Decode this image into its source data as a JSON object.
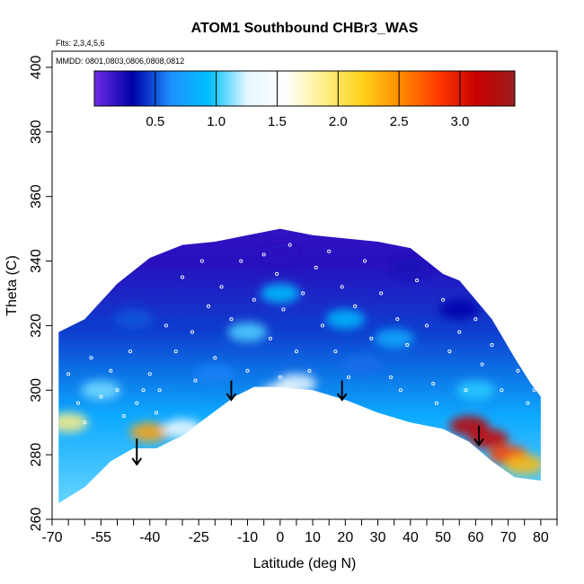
{
  "colors": {
    "scale": [
      "#6f2ce6",
      "#0000a8",
      "#1e90ff",
      "#00c0ff",
      "#e6f6ff",
      "#ffffff",
      "#fff08a",
      "#ffd21a",
      "#ff8c00",
      "#ff3b00",
      "#c80000",
      "#9c1e1e"
    ],
    "arrow": "#000000",
    "sample": "#ffffff"
  },
  "chart_data": {
    "type": "heatmap",
    "title": "ATOM1 Southbound CHBr3_WAS",
    "flights_note": "Flts: 2,3,4,5,6",
    "dates_note": "MMDD: 0801,0803,0806,0808,0812",
    "xlabel": "Latitude (deg N)",
    "ylabel": "Theta (C)",
    "xlim": [
      -70,
      85
    ],
    "ylim": [
      260,
      405
    ],
    "x_ticks": [
      -70,
      -55,
      -40,
      -25,
      -10,
      0,
      10,
      20,
      30,
      40,
      50,
      60,
      70,
      80
    ],
    "x_tick_labels": [
      "-70",
      "-55",
      "-40",
      "-25",
      "-10",
      "0",
      "10",
      "20",
      "30",
      "40",
      "50",
      "60",
      "70",
      "80"
    ],
    "x_minor_ticks": [
      -65,
      -60,
      -50,
      -45,
      -35,
      -30,
      -20,
      -15,
      -5,
      5,
      15,
      25,
      35,
      45,
      55,
      65,
      75,
      85
    ],
    "y_ticks": [
      260,
      280,
      300,
      320,
      340,
      360,
      380,
      400
    ],
    "y_tick_labels": [
      "260",
      "280",
      "300",
      "320",
      "340",
      "360",
      "380",
      "400"
    ],
    "colorbar": {
      "range": [
        0,
        3.45
      ],
      "ticks": [
        0.5,
        1.0,
        1.5,
        2.0,
        2.5,
        3.0
      ],
      "tick_labels": [
        "0.5",
        "1.0",
        "1.5",
        "2.0",
        "2.5",
        "3.0"
      ]
    },
    "upper_boundary": [
      [
        -68,
        318
      ],
      [
        -60,
        322
      ],
      [
        -50,
        333
      ],
      [
        -40,
        341
      ],
      [
        -30,
        345
      ],
      [
        -20,
        346
      ],
      [
        -10,
        348
      ],
      [
        0,
        350
      ],
      [
        10,
        348
      ],
      [
        20,
        347
      ],
      [
        30,
        346
      ],
      [
        40,
        344
      ],
      [
        50,
        336
      ],
      [
        55,
        334
      ],
      [
        60,
        328
      ],
      [
        65,
        322
      ],
      [
        72,
        310
      ],
      [
        77,
        302
      ],
      [
        80,
        298
      ]
    ],
    "lower_boundary": [
      [
        -68,
        265
      ],
      [
        -60,
        270
      ],
      [
        -52,
        278
      ],
      [
        -45,
        282
      ],
      [
        -38,
        282
      ],
      [
        -30,
        286
      ],
      [
        -22,
        292
      ],
      [
        -14,
        298
      ],
      [
        -8,
        301
      ],
      [
        0,
        301
      ],
      [
        10,
        300
      ],
      [
        20,
        297
      ],
      [
        30,
        293
      ],
      [
        40,
        290
      ],
      [
        50,
        288
      ],
      [
        58,
        284
      ],
      [
        65,
        278
      ],
      [
        72,
        273
      ],
      [
        80,
        272
      ]
    ],
    "hotspots": [
      {
        "lat": -40,
        "theta": 287,
        "value": 2.4
      },
      {
        "lat": -65,
        "theta": 290,
        "value": 1.9
      },
      {
        "lat": -30,
        "theta": 288,
        "value": 1.4
      },
      {
        "lat": 0,
        "theta": 299,
        "value": 1.6
      },
      {
        "lat": 5,
        "theta": 302,
        "value": 1.3
      },
      {
        "lat": 58,
        "theta": 289,
        "value": 3.2
      },
      {
        "lat": 64,
        "theta": 285,
        "value": 3.1
      },
      {
        "lat": 70,
        "theta": 280,
        "value": 2.8
      },
      {
        "lat": 75,
        "theta": 277,
        "value": 2.3
      },
      {
        "lat": -55,
        "theta": 300,
        "value": 1.1
      },
      {
        "lat": -10,
        "theta": 318,
        "value": 1.05
      },
      {
        "lat": 0,
        "theta": 330,
        "value": 0.95
      },
      {
        "lat": 20,
        "theta": 322,
        "value": 0.9
      },
      {
        "lat": 35,
        "theta": 316,
        "value": 0.8
      },
      {
        "lat": 60,
        "theta": 300,
        "value": 1.0
      },
      {
        "lat": -45,
        "theta": 322,
        "value": 0.5
      },
      {
        "lat": 0,
        "theta": 342,
        "value": 0.2
      },
      {
        "lat": -55,
        "theta": 335,
        "value": 0.15
      },
      {
        "lat": 40,
        "theta": 338,
        "value": 0.25
      },
      {
        "lat": 55,
        "theta": 325,
        "value": 0.3
      },
      {
        "lat": 25,
        "theta": 308,
        "value": 0.55
      },
      {
        "lat": -20,
        "theta": 305,
        "value": 0.6
      }
    ],
    "arrows": [
      {
        "lat": -44,
        "theta_top": 285,
        "theta_bottom": 277
      },
      {
        "lat": -15,
        "theta_top": 303,
        "theta_bottom": 297
      },
      {
        "lat": 19,
        "theta_top": 303,
        "theta_bottom": 297
      },
      {
        "lat": 61,
        "theta_top": 289,
        "theta_bottom": 283
      }
    ],
    "sample_points": [
      [
        -65,
        305
      ],
      [
        -62,
        296
      ],
      [
        -58,
        310
      ],
      [
        -55,
        298
      ],
      [
        -52,
        306
      ],
      [
        -50,
        300
      ],
      [
        -48,
        292
      ],
      [
        -46,
        312
      ],
      [
        -44,
        296
      ],
      [
        -42,
        300
      ],
      [
        -40,
        305
      ],
      [
        -38,
        293
      ],
      [
        -35,
        320
      ],
      [
        -32,
        312
      ],
      [
        -30,
        335
      ],
      [
        -27,
        318
      ],
      [
        -24,
        340
      ],
      [
        -22,
        326
      ],
      [
        -20,
        310
      ],
      [
        -18,
        332
      ],
      [
        -15,
        322
      ],
      [
        -12,
        340
      ],
      [
        -10,
        306
      ],
      [
        -8,
        328
      ],
      [
        -5,
        342
      ],
      [
        -3,
        316
      ],
      [
        -1,
        336
      ],
      [
        0,
        304
      ],
      [
        1,
        325
      ],
      [
        3,
        345
      ],
      [
        5,
        312
      ],
      [
        7,
        330
      ],
      [
        9,
        306
      ],
      [
        11,
        338
      ],
      [
        13,
        320
      ],
      [
        15,
        343
      ],
      [
        17,
        312
      ],
      [
        19,
        332
      ],
      [
        21,
        304
      ],
      [
        23,
        326
      ],
      [
        26,
        340
      ],
      [
        28,
        316
      ],
      [
        31,
        330
      ],
      [
        34,
        304
      ],
      [
        36,
        322
      ],
      [
        39,
        314
      ],
      [
        42,
        334
      ],
      [
        45,
        320
      ],
      [
        47,
        302
      ],
      [
        50,
        328
      ],
      [
        52,
        312
      ],
      [
        55,
        318
      ],
      [
        57,
        300
      ],
      [
        60,
        322
      ],
      [
        62,
        308
      ],
      [
        65,
        314
      ],
      [
        68,
        300
      ],
      [
        70,
        318
      ],
      [
        73,
        306
      ],
      [
        76,
        296
      ],
      [
        78,
        300
      ],
      [
        -60,
        290
      ],
      [
        -37,
        300
      ],
      [
        -26,
        303
      ],
      [
        2,
        300
      ],
      [
        37,
        300
      ],
      [
        48,
        296
      ]
    ]
  }
}
